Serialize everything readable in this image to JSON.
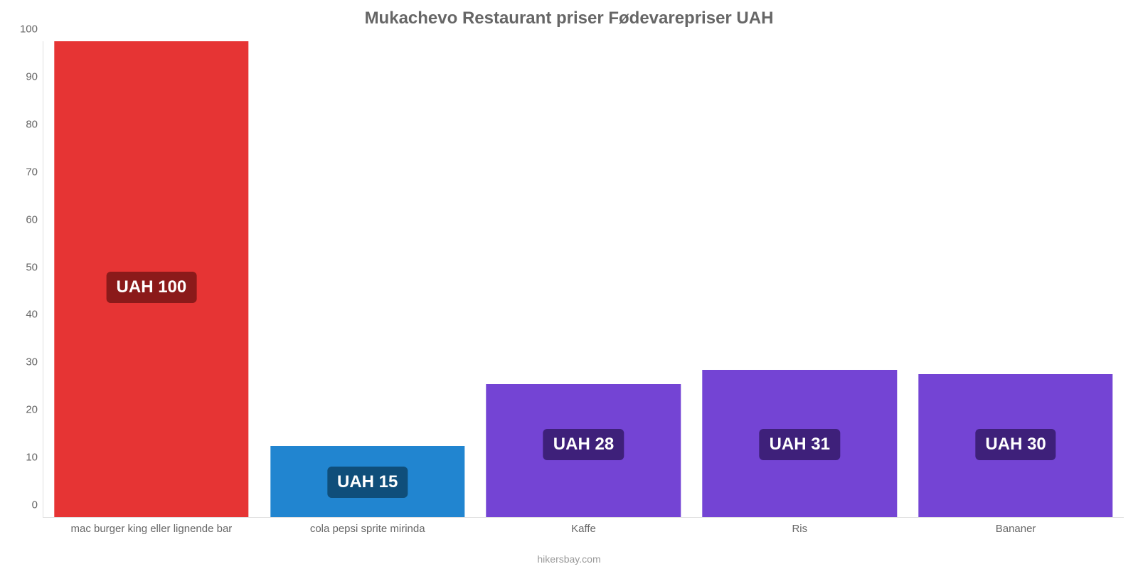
{
  "chart": {
    "type": "bar",
    "title": "Mukachevo Restaurant priser Fødevarepriser UAH",
    "title_fontsize": 24,
    "title_color": "#666666",
    "credit": "hikersbay.com",
    "credit_color": "#999999",
    "background_color": "#ffffff",
    "axis_color": "#e0e0e0",
    "tick_label_color": "#666666",
    "tick_label_fontsize": 15,
    "ylim": [
      0,
      100
    ],
    "ytick_step": 10,
    "yticks": [
      0,
      10,
      20,
      30,
      40,
      50,
      60,
      70,
      80,
      90,
      100
    ],
    "bar_width_pct": 90,
    "value_label_fontsize": 24,
    "value_label_text_color": "#ffffff",
    "categories": [
      "mac burger king eller lignende bar",
      "cola pepsi sprite mirinda",
      "Kaffe",
      "Ris",
      "Bananer"
    ],
    "values": [
      100,
      15,
      28,
      31,
      30
    ],
    "value_labels": [
      "UAH 100",
      "UAH 15",
      "UAH 28",
      "UAH 31",
      "UAH 30"
    ],
    "bar_colors": [
      "#e63434",
      "#2185d0",
      "#7444d4",
      "#7444d4",
      "#7444d4"
    ],
    "badge_colors": [
      "#8b1a1a",
      "#0f4e7a",
      "#3e207a",
      "#3e207a",
      "#3e207a"
    ],
    "badge_bottom_pct": [
      45,
      4,
      12,
      12,
      12
    ]
  }
}
